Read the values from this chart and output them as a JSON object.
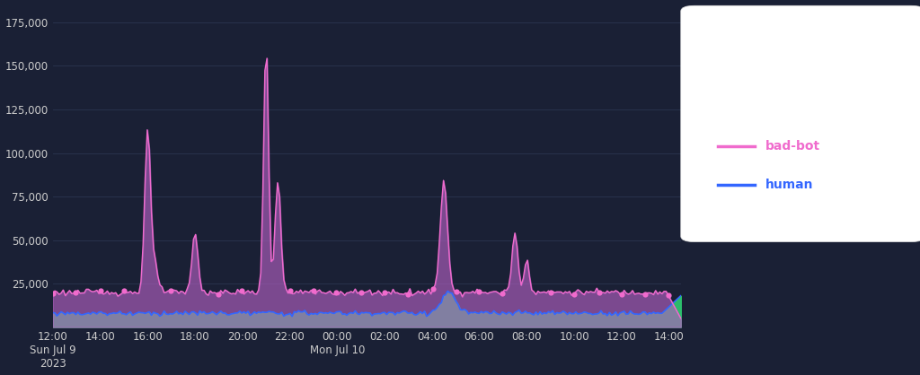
{
  "background_color": "#1a2035",
  "plot_bg_color": "#1a2035",
  "grid_color": "#2a3550",
  "bad_bot_color": "#f06bcd",
  "bad_bot_fill": "#b060c0",
  "human_color": "#3366ff",
  "human_fill": "#2ecc71",
  "ylim": [
    0,
    185000
  ],
  "yticks": [
    0,
    25000,
    50000,
    75000,
    100000,
    125000,
    150000,
    175000
  ],
  "ytick_labels": [
    "",
    "25,000",
    "50,000",
    "75,000",
    "100,000",
    "125,000",
    "150,000",
    "175,000"
  ],
  "xtick_labels": [
    "12:00\nSun Jul 9\n2023",
    "14:00",
    "16:00",
    "18:00",
    "20:00",
    "22:00",
    "00:00\nMon Jul 10",
    "02:00",
    "04:00",
    "06:00",
    "08:00",
    "10:00",
    "12:00",
    "14:00"
  ],
  "legend_bad_bot": "bad-bot",
  "legend_human": "human",
  "tick_color": "#cccccc",
  "tick_fontsize": 8.5
}
